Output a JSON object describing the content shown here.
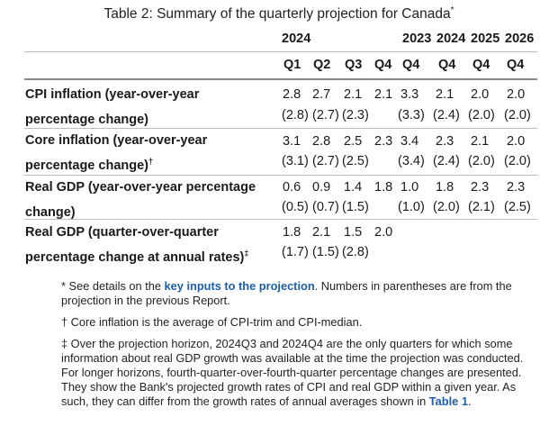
{
  "title": "Table 2: Summary of the quarterly projection for Canada",
  "title_mark": "*",
  "year_headers": [
    "2024",
    "2023",
    "2024",
    "2025",
    "2026"
  ],
  "quarter_headers": [
    "Q1",
    "Q2",
    "Q3",
    "Q4",
    "Q4",
    "Q4",
    "Q4",
    "Q4"
  ],
  "rows": [
    {
      "label_line1": "CPI inflation (year-over-year",
      "label_line2": "percentage change)",
      "mark": "",
      "values": [
        "2.8",
        "2.7",
        "2.1",
        "2.1",
        "3.3",
        "2.1",
        "2.0",
        "2.0"
      ],
      "prev": [
        "(2.8)",
        "(2.7)",
        "(2.3)",
        "",
        "(3.3)",
        "(2.4)",
        "(2.0)",
        "(2.0)"
      ]
    },
    {
      "label_line1": "Core inflation (year-over-year",
      "label_line2": "percentage change)",
      "mark": "†",
      "values": [
        "3.1",
        "2.8",
        "2.5",
        "2.3",
        "3.4",
        "2.3",
        "2.1",
        "2.0"
      ],
      "prev": [
        "(3.1)",
        "(2.7)",
        "(2.5)",
        "",
        "(3.4)",
        "(2.4)",
        "(2.0)",
        "(2.0)"
      ]
    },
    {
      "label_line1": "Real GDP (year-over-year percentage",
      "label_line2": "change)",
      "mark": "",
      "values": [
        "0.6",
        "0.9",
        "1.4",
        "1.8",
        "1.0",
        "1.8",
        "2.3",
        "2.3"
      ],
      "prev": [
        "(0.5)",
        "(0.7)",
        "(1.5)",
        "",
        "(1.0)",
        "(2.0)",
        "(2.1)",
        "(2.5)"
      ]
    },
    {
      "label_line1": "Real GDP (quarter-over-quarter",
      "label_line2": "percentage change at annual rates)",
      "mark": "‡",
      "values": [
        "1.8",
        "2.1",
        "1.5",
        "2.0",
        "",
        "",
        "",
        ""
      ],
      "prev": [
        "(1.7)",
        "(1.5)",
        "(2.8)",
        "",
        "",
        "",
        "",
        ""
      ]
    }
  ],
  "notes": {
    "n1_prefix": "* See details on the ",
    "n1_link": "key inputs to the projection",
    "n1_suffix": ". Numbers in parentheses are from the projection in the previous Report.",
    "n2": "† Core inflation is the average of CPI-trim and CPI-median.",
    "n3": "‡ Over the projection horizon, 2024Q3 and 2024Q4 are the only quarters for which some information about real GDP growth was available at the time the projection was conducted. For longer horizons, fourth-quarter-over-fourth-quarter percentage changes are presented. They show the Bank's projected growth rates of CPI and real GDP within a given year. As such, they can differ from the growth rates of annual averages shown in ",
    "n3_link": "Table 1",
    "n3_suffix": "."
  },
  "colors": {
    "link": "#1d5fa8",
    "rule": "#bdbdbd"
  }
}
